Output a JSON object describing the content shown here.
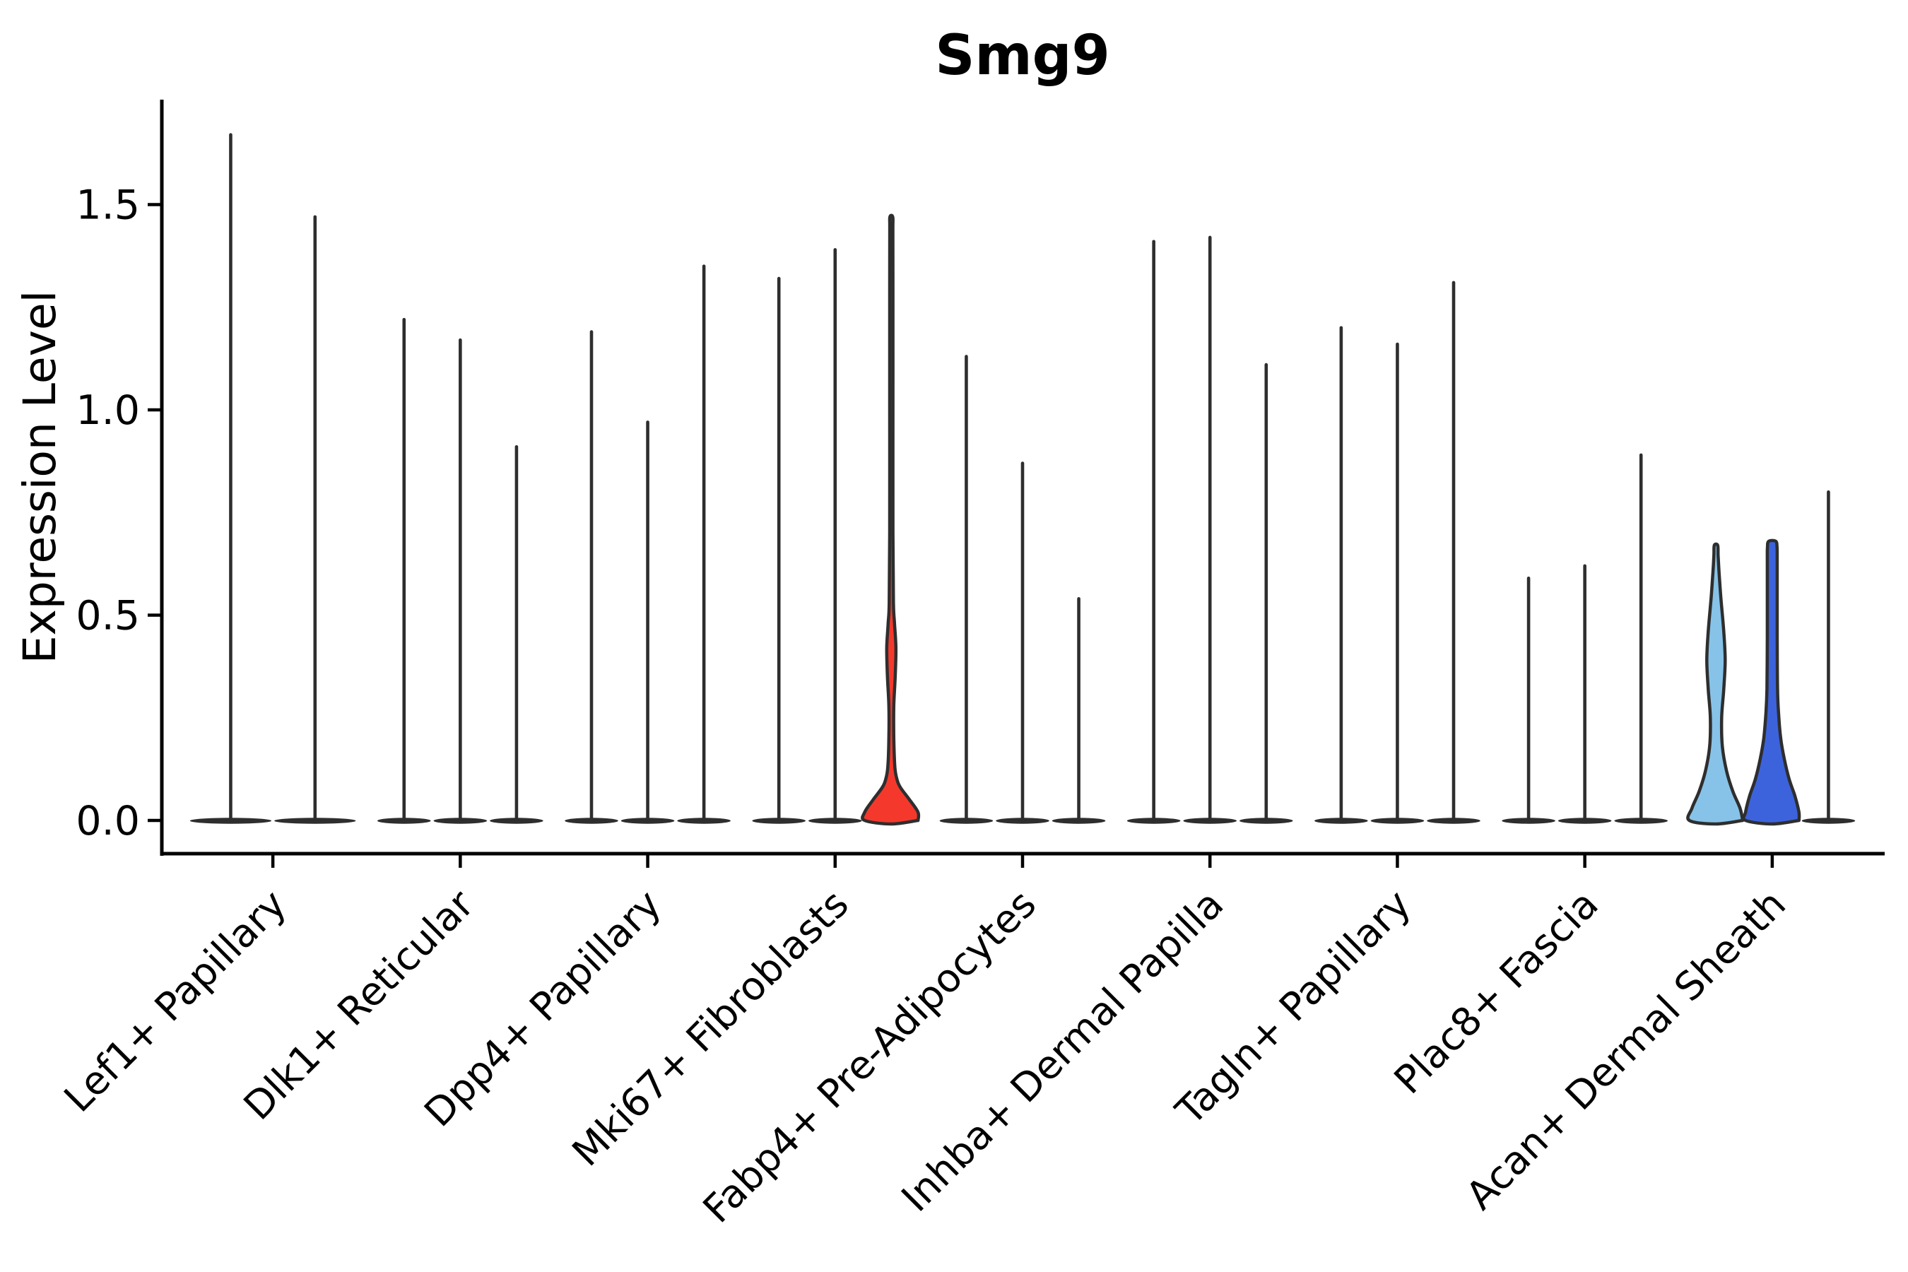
{
  "chart_data": {
    "type": "violin",
    "title": "Smg9",
    "ylabel": "Expression Level",
    "xlabel": "",
    "grid": false,
    "legend": "none",
    "ylim": [
      -0.084,
      1.756
    ],
    "yticks": [
      0.0,
      0.5,
      1.0,
      1.5
    ],
    "ytick_labels": [
      "0.0",
      "0.5",
      "1.0",
      "1.5"
    ],
    "categories": [
      "Lef1+ Papillary",
      "Dlk1+ Reticular",
      "Dpp4+ Papillary",
      "Mki67+ Fibroblasts",
      "Fabp4+ Pre-Adipocytes",
      "Inhba+ Dermal Papilla",
      "Tagln+ Papillary",
      "Plac8+ Fascia",
      "Acan+ Dermal Sheath"
    ],
    "description": "Split violin plot; most violins collapse to a flat base at 0 with a thin line up to the max expression value. Three violins are colored: one red (Mki67+ Fibroblasts, 3rd violin) and a light-blue + royal-blue pair (Acan+ Dermal Sheath).",
    "groups": [
      {
        "category": "Lef1+ Papillary",
        "violins": [
          {
            "kind": "spike",
            "max": 1.67
          },
          {
            "kind": "spike",
            "max": 1.47
          }
        ]
      },
      {
        "category": "Dlk1+ Reticular",
        "violins": [
          {
            "kind": "spike",
            "max": 1.22
          },
          {
            "kind": "spike",
            "max": 1.17
          },
          {
            "kind": "spike",
            "max": 0.91
          }
        ]
      },
      {
        "category": "Dpp4+ Papillary",
        "violins": [
          {
            "kind": "spike",
            "max": 1.19
          },
          {
            "kind": "spike",
            "max": 0.97
          },
          {
            "kind": "spike",
            "max": 1.35
          }
        ]
      },
      {
        "category": "Mki67+ Fibroblasts",
        "violins": [
          {
            "kind": "spike",
            "max": 1.32
          },
          {
            "kind": "spike",
            "max": 1.39
          },
          {
            "kind": "shaped",
            "shape": "red_bulge",
            "max": 1.47,
            "fill": "#F4392C"
          }
        ]
      },
      {
        "category": "Fabp4+ Pre-Adipocytes",
        "violins": [
          {
            "kind": "spike",
            "max": 1.13
          },
          {
            "kind": "spike",
            "max": 0.87
          },
          {
            "kind": "spike",
            "max": 0.54
          }
        ]
      },
      {
        "category": "Inhba+ Dermal Papilla",
        "violins": [
          {
            "kind": "spike",
            "max": 1.41
          },
          {
            "kind": "spike",
            "max": 1.42
          },
          {
            "kind": "spike",
            "max": 1.11
          }
        ]
      },
      {
        "category": "Tagln+ Papillary",
        "violins": [
          {
            "kind": "spike",
            "max": 1.2
          },
          {
            "kind": "spike",
            "max": 1.16
          },
          {
            "kind": "spike",
            "max": 1.31
          }
        ]
      },
      {
        "category": "Plac8+ Fascia",
        "violins": [
          {
            "kind": "spike",
            "max": 0.59
          },
          {
            "kind": "spike",
            "max": 0.62
          },
          {
            "kind": "spike",
            "max": 0.89
          }
        ]
      },
      {
        "category": "Acan+ Dermal Sheath",
        "violins": [
          {
            "kind": "shaped",
            "shape": "lightblue_spindle",
            "max": 0.67,
            "fill": "#87C3E8"
          },
          {
            "kind": "shaped",
            "shape": "blue_column",
            "max": 0.68,
            "fill": "#3D63DC"
          },
          {
            "kind": "spike",
            "max": 0.8
          }
        ]
      }
    ],
    "colors": {
      "outline": "#2E2E2E",
      "axis": "#000000",
      "highlight_red": "#F4392C",
      "highlight_light_blue": "#87C3E8",
      "highlight_royal_blue": "#3D63DC",
      "background": "#FFFFFF"
    },
    "profiles": {
      "red_bulge": [
        [
          0,
          40
        ],
        [
          0.02,
          38
        ],
        [
          0.05,
          26
        ],
        [
          0.08,
          13
        ],
        [
          0.1,
          8
        ],
        [
          0.13,
          5
        ],
        [
          0.2,
          3.5
        ],
        [
          0.28,
          3.5
        ],
        [
          0.35,
          5.5
        ],
        [
          0.42,
          6.5
        ],
        [
          0.48,
          4.5
        ],
        [
          0.53,
          3
        ],
        [
          0.7,
          2.3
        ],
        [
          1.0,
          2.3
        ],
        [
          1.3,
          2.3
        ],
        [
          1.44,
          2.2
        ],
        [
          1.47,
          2.0
        ]
      ],
      "lightblue_spindle": [
        [
          0,
          40
        ],
        [
          0.03,
          34
        ],
        [
          0.07,
          24
        ],
        [
          0.12,
          15
        ],
        [
          0.18,
          9
        ],
        [
          0.25,
          8
        ],
        [
          0.32,
          11
        ],
        [
          0.39,
          13
        ],
        [
          0.46,
          11
        ],
        [
          0.54,
          7
        ],
        [
          0.6,
          4.5
        ],
        [
          0.645,
          3
        ],
        [
          0.67,
          2.4
        ]
      ],
      "blue_column": [
        [
          0,
          40
        ],
        [
          0.02,
          39
        ],
        [
          0.06,
          32
        ],
        [
          0.1,
          24
        ],
        [
          0.15,
          17
        ],
        [
          0.2,
          12
        ],
        [
          0.26,
          9
        ],
        [
          0.32,
          7.5
        ],
        [
          0.45,
          7
        ],
        [
          0.55,
          7
        ],
        [
          0.63,
          7
        ],
        [
          0.665,
          6.8
        ],
        [
          0.68,
          5.0
        ]
      ]
    }
  }
}
